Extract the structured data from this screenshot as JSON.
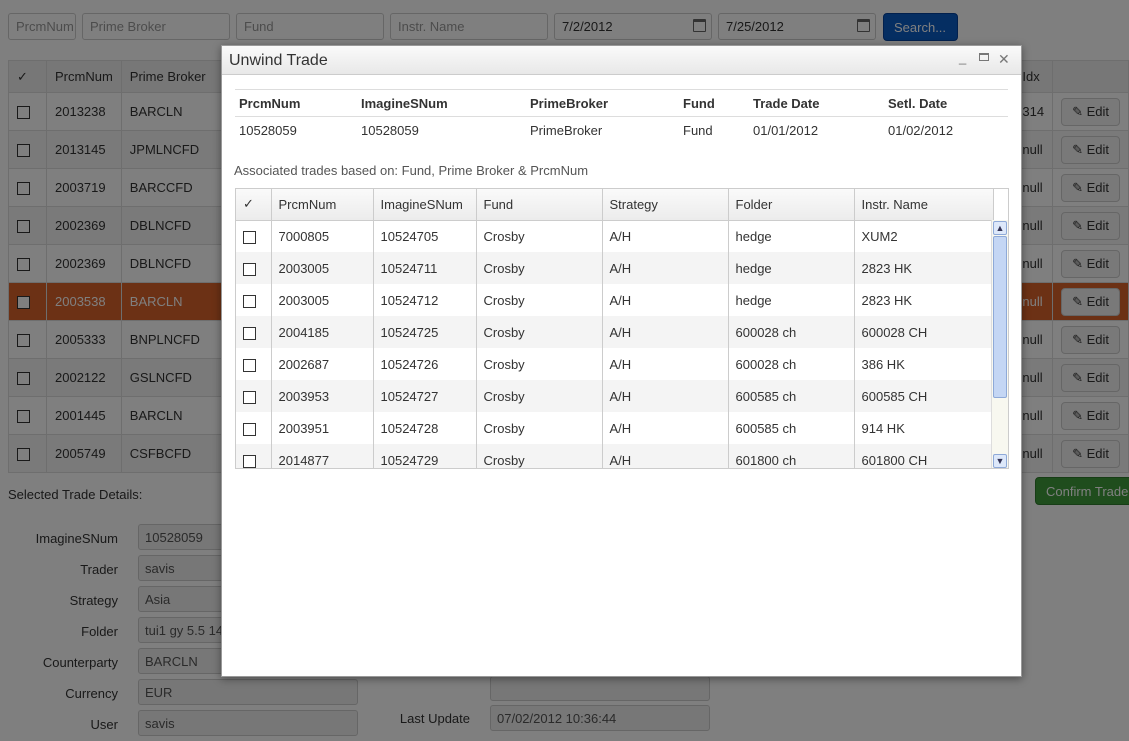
{
  "filters": {
    "prcmnum_placeholder": "PrcmNum",
    "prime_broker_placeholder": "Prime Broker",
    "fund_placeholder": "Fund",
    "instr_placeholder": "Instr. Name",
    "date_from": "7/2/2012",
    "date_to": "7/25/2012",
    "search_label": "Search..."
  },
  "main_table": {
    "headers": {
      "check": "✓",
      "prcmnum": "PrcmNum",
      "prime_broker": "Prime Broker",
      "idx": "Idx"
    },
    "edit_label": "Edit",
    "rows": [
      {
        "prcmnum": "2013238",
        "broker": "BARCLN",
        "idx": "314"
      },
      {
        "prcmnum": "2013145",
        "broker": "JPMLNCFD",
        "idx": "null"
      },
      {
        "prcmnum": "2003719",
        "broker": "BARCCFD",
        "idx": "null"
      },
      {
        "prcmnum": "2002369",
        "broker": "DBLNCFD",
        "idx": "null"
      },
      {
        "prcmnum": "2002369",
        "broker": "DBLNCFD",
        "idx": "null"
      },
      {
        "prcmnum": "2003538",
        "broker": "BARCLN",
        "idx": "null"
      },
      {
        "prcmnum": "2005333",
        "broker": "BNPLNCFD",
        "idx": "null"
      },
      {
        "prcmnum": "2002122",
        "broker": "GSLNCFD",
        "idx": "null"
      },
      {
        "prcmnum": "2001445",
        "broker": "BARCLN",
        "idx": "null"
      },
      {
        "prcmnum": "2005749",
        "broker": "CSFBCFD",
        "idx": "null"
      }
    ]
  },
  "details": {
    "title": "Selected Trade Details:",
    "fields": [
      {
        "label": "ImagineSNum",
        "value": "10528059"
      },
      {
        "label": "Trader",
        "value": "savis"
      },
      {
        "label": "Strategy",
        "value": "Asia"
      },
      {
        "label": "Folder",
        "value": "tui1 gy 5.5 14"
      },
      {
        "label": "Counterparty",
        "value": "BARCLN"
      },
      {
        "label": "Currency",
        "value": "EUR"
      },
      {
        "label": "User",
        "value": "savis"
      }
    ],
    "last_update_label": "Last Update",
    "last_update_value": "07/02/2012 10:36:44",
    "confirm_label": "Confirm Trade(s)"
  },
  "modal": {
    "title": "Unwind Trade",
    "info_headers": [
      "PrcmNum",
      "ImagineSNum",
      "PrimeBroker",
      "Fund",
      "Trade Date",
      "Setl. Date"
    ],
    "info_values": [
      "10528059",
      "10528059",
      "PrimeBroker",
      "Fund",
      "01/01/2012",
      "01/02/2012"
    ],
    "assoc_text": "Associated trades based on: Fund, Prime Broker & PrcmNum",
    "grid_headers": [
      "✓",
      "PrcmNum",
      "ImagineSNum",
      "Fund",
      "Strategy",
      "Folder",
      "Instr. Name"
    ],
    "grid_rows": [
      [
        "7000805",
        "10524705",
        "Crosby",
        "A/H",
        "hedge",
        "XUM2"
      ],
      [
        "2003005",
        "10524711",
        "Crosby",
        "A/H",
        "hedge",
        "2823 HK"
      ],
      [
        "2003005",
        "10524712",
        "Crosby",
        "A/H",
        "hedge",
        "2823 HK"
      ],
      [
        "2004185",
        "10524725",
        "Crosby",
        "A/H",
        "600028 ch",
        "600028 CH"
      ],
      [
        "2002687",
        "10524726",
        "Crosby",
        "A/H",
        "600028 ch",
        "386 HK"
      ],
      [
        "2003953",
        "10524727",
        "Crosby",
        "A/H",
        "600585 ch",
        "600585 CH"
      ],
      [
        "2003951",
        "10524728",
        "Crosby",
        "A/H",
        "600585 ch",
        "914 HK"
      ],
      [
        "2014877",
        "10524729",
        "Crosby",
        "A/H",
        "601800 ch",
        "601800 CH"
      ]
    ]
  }
}
